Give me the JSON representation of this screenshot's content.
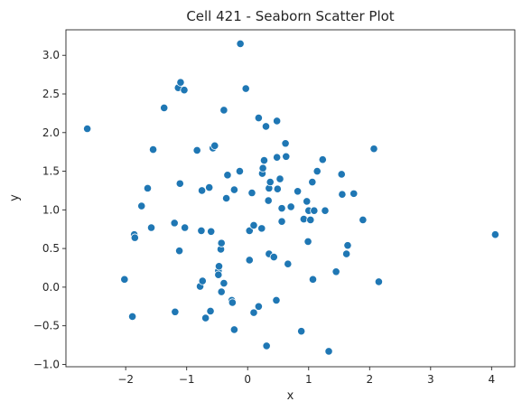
{
  "chart_data": {
    "type": "scatter",
    "title": "Cell 421 - Seaborn Scatter Plot",
    "xlabel": "x",
    "ylabel": "y",
    "xlim": [
      -2.98,
      4.38
    ],
    "ylim": [
      -1.03,
      3.33
    ],
    "x_ticks": [
      -2,
      -1,
      0,
      1,
      2,
      3,
      4
    ],
    "y_ticks": [
      -1.0,
      -0.5,
      0.0,
      0.5,
      1.0,
      1.5,
      2.0,
      2.5,
      3.0
    ],
    "x_tick_labels": [
      "−2",
      "−1",
      "0",
      "1",
      "2",
      "3",
      "4"
    ],
    "y_tick_labels": [
      "−1.0",
      "−0.5",
      "0.0",
      "0.5",
      "1.0",
      "1.5",
      "2.0",
      "2.5",
      "3.0"
    ],
    "grid": false,
    "marker_color": "#1f77b4",
    "marker_edge_color": "#ffffff",
    "points": [
      {
        "x": -2.63,
        "y": 2.05
      },
      {
        "x": -2.02,
        "y": 0.1
      },
      {
        "x": -1.89,
        "y": -0.38
      },
      {
        "x": -1.86,
        "y": 0.68
      },
      {
        "x": -1.85,
        "y": 0.64
      },
      {
        "x": -1.74,
        "y": 1.05
      },
      {
        "x": -1.64,
        "y": 1.28
      },
      {
        "x": -1.58,
        "y": 0.77
      },
      {
        "x": -1.55,
        "y": 1.78
      },
      {
        "x": -1.37,
        "y": 2.32
      },
      {
        "x": -1.2,
        "y": 0.83
      },
      {
        "x": -1.19,
        "y": -0.32
      },
      {
        "x": -1.14,
        "y": 2.58
      },
      {
        "x": -1.12,
        "y": 0.47
      },
      {
        "x": -1.1,
        "y": 2.65
      },
      {
        "x": -1.04,
        "y": 2.55
      },
      {
        "x": -1.11,
        "y": 1.34
      },
      {
        "x": -1.03,
        "y": 0.77
      },
      {
        "x": -0.83,
        "y": 1.77
      },
      {
        "x": -0.78,
        "y": 0.01
      },
      {
        "x": -0.74,
        "y": 0.08
      },
      {
        "x": -0.76,
        "y": 0.73
      },
      {
        "x": -0.75,
        "y": 1.25
      },
      {
        "x": -0.69,
        "y": -0.4
      },
      {
        "x": -0.63,
        "y": 1.29
      },
      {
        "x": -0.61,
        "y": -0.31
      },
      {
        "x": -0.6,
        "y": 0.72
      },
      {
        "x": -0.57,
        "y": 1.8
      },
      {
        "x": -0.54,
        "y": 1.83
      },
      {
        "x": -0.48,
        "y": 0.21
      },
      {
        "x": -0.48,
        "y": 0.16
      },
      {
        "x": -0.47,
        "y": 0.27
      },
      {
        "x": -0.44,
        "y": 0.49
      },
      {
        "x": -0.43,
        "y": 0.57
      },
      {
        "x": -0.43,
        "y": -0.06
      },
      {
        "x": -0.39,
        "y": 0.05
      },
      {
        "x": -0.39,
        "y": 2.29
      },
      {
        "x": -0.33,
        "y": 1.45
      },
      {
        "x": -0.35,
        "y": 1.15
      },
      {
        "x": -0.26,
        "y": -0.17
      },
      {
        "x": -0.25,
        "y": -0.2
      },
      {
        "x": -0.22,
        "y": -0.55
      },
      {
        "x": -0.22,
        "y": 1.26
      },
      {
        "x": -0.13,
        "y": 1.5
      },
      {
        "x": -0.12,
        "y": 3.15
      },
      {
        "x": -0.03,
        "y": 2.57
      },
      {
        "x": 0.03,
        "y": 0.35
      },
      {
        "x": 0.03,
        "y": 0.73
      },
      {
        "x": 0.07,
        "y": 1.22
      },
      {
        "x": 0.1,
        "y": 0.8
      },
      {
        "x": 0.1,
        "y": -0.33
      },
      {
        "x": 0.18,
        "y": 2.19
      },
      {
        "x": 0.18,
        "y": -0.25
      },
      {
        "x": 0.24,
        "y": 1.47
      },
      {
        "x": 0.25,
        "y": 1.54
      },
      {
        "x": 0.23,
        "y": 0.76
      },
      {
        "x": 0.27,
        "y": 1.64
      },
      {
        "x": 0.3,
        "y": 2.08
      },
      {
        "x": 0.31,
        "y": -0.76
      },
      {
        "x": 0.34,
        "y": 1.12
      },
      {
        "x": 0.35,
        "y": 1.28
      },
      {
        "x": 0.37,
        "y": 1.36
      },
      {
        "x": 0.35,
        "y": 0.43
      },
      {
        "x": 0.43,
        "y": 0.39
      },
      {
        "x": 0.47,
        "y": -0.17
      },
      {
        "x": 0.48,
        "y": 2.15
      },
      {
        "x": 0.48,
        "y": 1.68
      },
      {
        "x": 0.49,
        "y": 1.27
      },
      {
        "x": 0.53,
        "y": 1.4
      },
      {
        "x": 0.56,
        "y": 1.02
      },
      {
        "x": 0.56,
        "y": 0.85
      },
      {
        "x": 0.62,
        "y": 1.86
      },
      {
        "x": 0.63,
        "y": 1.69
      },
      {
        "x": 0.66,
        "y": 0.3
      },
      {
        "x": 0.71,
        "y": 1.04
      },
      {
        "x": 0.82,
        "y": 1.24
      },
      {
        "x": 0.88,
        "y": -0.57
      },
      {
        "x": 0.92,
        "y": 0.88
      },
      {
        "x": 0.97,
        "y": 1.11
      },
      {
        "x": 0.99,
        "y": 0.59
      },
      {
        "x": 1.0,
        "y": 0.99
      },
      {
        "x": 1.03,
        "y": 0.87
      },
      {
        "x": 1.06,
        "y": 1.36
      },
      {
        "x": 1.07,
        "y": 0.1
      },
      {
        "x": 1.09,
        "y": 0.99
      },
      {
        "x": 1.14,
        "y": 1.5
      },
      {
        "x": 1.23,
        "y": 1.65
      },
      {
        "x": 1.27,
        "y": 0.99
      },
      {
        "x": 1.33,
        "y": -0.83
      },
      {
        "x": 1.45,
        "y": 0.2
      },
      {
        "x": 1.54,
        "y": 1.46
      },
      {
        "x": 1.55,
        "y": 1.2
      },
      {
        "x": 1.62,
        "y": 0.43
      },
      {
        "x": 1.64,
        "y": 0.54
      },
      {
        "x": 1.74,
        "y": 1.21
      },
      {
        "x": 1.89,
        "y": 0.87
      },
      {
        "x": 2.07,
        "y": 1.79
      },
      {
        "x": 2.15,
        "y": 0.07
      },
      {
        "x": 4.06,
        "y": 0.68
      }
    ]
  }
}
